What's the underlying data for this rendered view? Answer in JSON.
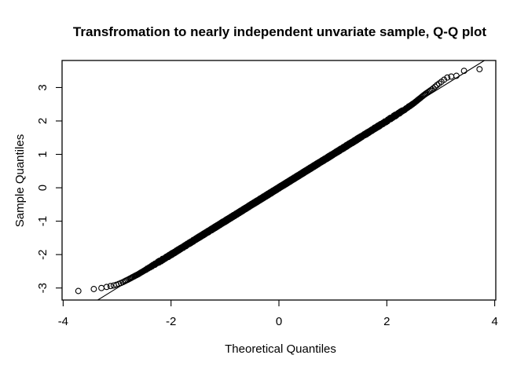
{
  "chart_data": {
    "type": "scatter",
    "title": "Transfromation to nearly independent unvariate sample, Q-Q plot",
    "xlabel": "Theoretical Quantiles",
    "ylabel": "Sample Quantiles",
    "x_ticks": [
      -4,
      -2,
      0,
      2,
      4
    ],
    "y_ticks": [
      -3,
      -2,
      -1,
      0,
      1,
      2,
      3
    ],
    "xlim": [
      -4.02,
      4.02
    ],
    "ylim": [
      -3.36,
      3.81
    ],
    "grid": false,
    "legend": "none",
    "n_points": 5000,
    "marker": "open-circle",
    "point_color": "#000000",
    "line_color": "#000000",
    "background_color": "#ffffff",
    "reference_line": {
      "slope": 1,
      "intercept": 0
    },
    "sample_min": -3.09,
    "sample_max": 3.55,
    "deviation_knots": [
      [
        -4.02,
        0.7
      ],
      [
        -3.72,
        0.63
      ],
      [
        -3.55,
        0.5
      ],
      [
        -3.43,
        0.4
      ],
      [
        -3.29,
        0.29
      ],
      [
        -3.2,
        0.23
      ],
      [
        -3.12,
        0.18
      ],
      [
        -3.05,
        0.13
      ],
      [
        -3.0,
        0.1
      ],
      [
        -2.9,
        0.07
      ],
      [
        -2.8,
        0.05
      ],
      [
        -2.6,
        0.02
      ],
      [
        -2.3,
        0.01
      ],
      [
        -2.0,
        0.0
      ],
      [
        2.0,
        0.0
      ],
      [
        2.3,
        0.01
      ],
      [
        2.5,
        0.03
      ],
      [
        2.7,
        0.09
      ],
      [
        2.85,
        0.11
      ],
      [
        2.95,
        0.15
      ],
      [
        3.05,
        0.17
      ],
      [
        3.12,
        0.18
      ],
      [
        3.2,
        0.13
      ],
      [
        3.29,
        0.06
      ],
      [
        3.43,
        0.07
      ],
      [
        3.55,
        0.0
      ],
      [
        3.72,
        -0.17
      ],
      [
        4.02,
        -0.25
      ]
    ],
    "notable_points": {
      "lower_tail": [
        [
          -3.72,
          -3.09
        ],
        [
          -3.43,
          -3.03
        ],
        [
          -3.29,
          -3.0
        ],
        [
          -3.2,
          -2.97
        ],
        [
          -3.12,
          -2.94
        ]
      ],
      "upper_tail": [
        [
          3.12,
          3.3
        ],
        [
          3.2,
          3.33
        ],
        [
          3.29,
          3.35
        ],
        [
          3.43,
          3.5
        ],
        [
          3.72,
          3.55
        ]
      ]
    }
  }
}
